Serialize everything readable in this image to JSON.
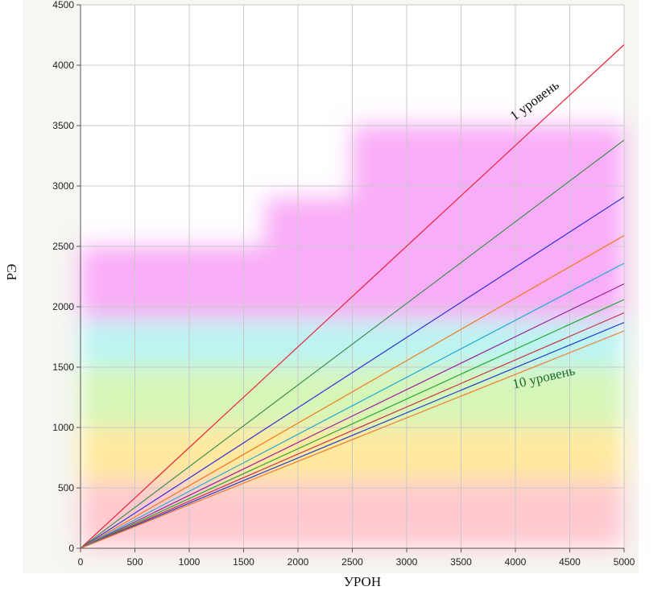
{
  "chart_data": {
    "type": "line",
    "xlabel": "УРОН",
    "ylabel": "РЭ",
    "xlim": [
      0,
      5000
    ],
    "ylim": [
      0,
      4500
    ],
    "x_ticks": [
      0,
      500,
      1000,
      1500,
      2000,
      2500,
      3000,
      3500,
      4000,
      4500,
      5000
    ],
    "y_ticks": [
      0,
      500,
      1000,
      1500,
      2000,
      2500,
      3000,
      3500,
      4000,
      4500
    ],
    "grid": true,
    "x": [
      0,
      5000
    ],
    "series": [
      {
        "values": [
          0,
          4170
        ],
        "color": "#e8233a"
      },
      {
        "values": [
          0,
          3380
        ],
        "color": "#3f8f50"
      },
      {
        "values": [
          0,
          2910
        ],
        "color": "#3535d8"
      },
      {
        "values": [
          0,
          2590
        ],
        "color": "#f07a1e"
      },
      {
        "values": [
          0,
          2360
        ],
        "color": "#1fa9d6"
      },
      {
        "values": [
          0,
          2190
        ],
        "color": "#9a1fa0"
      },
      {
        "values": [
          0,
          2060
        ],
        "color": "#21a832"
      },
      {
        "values": [
          0,
          1950
        ],
        "color": "#c8324a"
      },
      {
        "values": [
          0,
          1870
        ],
        "color": "#1f3fd0"
      },
      {
        "values": [
          0,
          1800
        ],
        "color": "#f07a30"
      }
    ],
    "annotations": [
      {
        "text": "1 уровень",
        "x": 4200,
        "y": 3680,
        "angle": -37,
        "color": "#111111"
      },
      {
        "text": "10 уровень",
        "x": 4270,
        "y": 1380,
        "angle": -13,
        "color": "#1e6b2e"
      }
    ],
    "background_bands": [
      {
        "y_from": 0,
        "y_to": 550,
        "color": "#ffc6cc"
      },
      {
        "y_from": 550,
        "y_to": 1000,
        "color": "#ffe89a"
      },
      {
        "y_from": 1000,
        "y_to": 1500,
        "color": "#d4f5b4"
      },
      {
        "y_from": 1500,
        "y_to": 1900,
        "color": "#b8f3f0"
      },
      {
        "y_from": 1900,
        "y_to": 2500,
        "color": "#f9a8f7",
        "x_from": 0,
        "x_to": 1700
      },
      {
        "y_from": 1900,
        "y_to": 2900,
        "color": "#f9a8f7",
        "x_from": 1700,
        "x_to": 2500
      },
      {
        "y_from": 1900,
        "y_to": 3500,
        "color": "#f9a8f7",
        "x_from": 2500,
        "x_to": 5000
      }
    ],
    "colors": {
      "grid": "#c8c8c8",
      "axis": "#555555",
      "frame_bg": "#f4f4f0"
    }
  }
}
